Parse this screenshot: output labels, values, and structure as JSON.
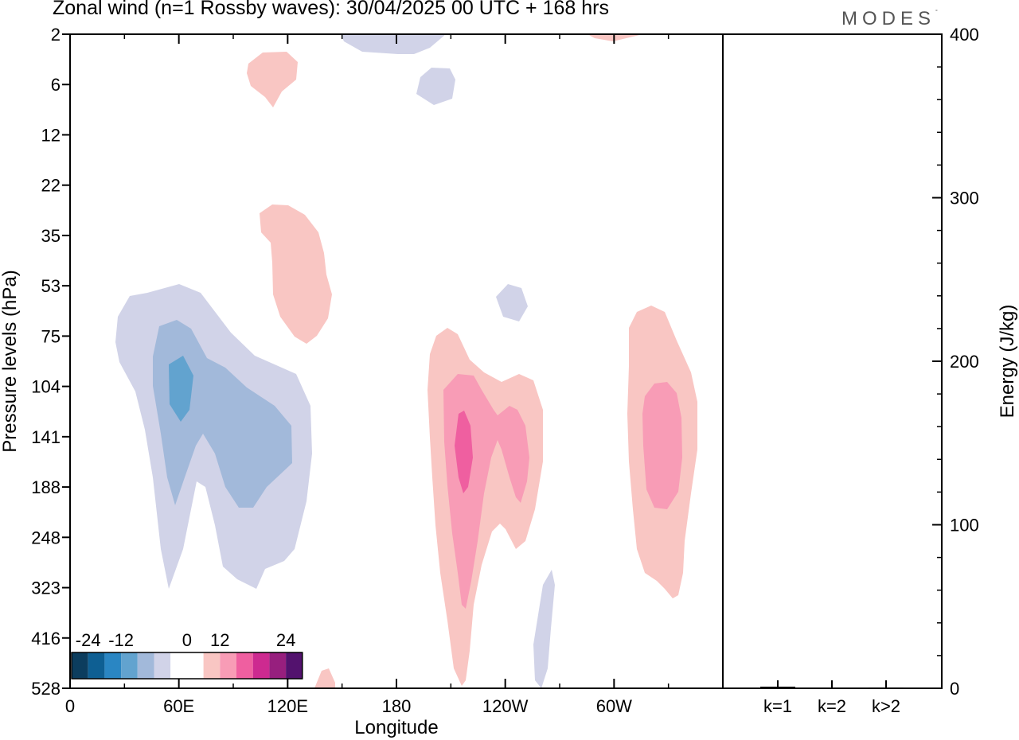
{
  "header": {
    "title": "Zonal wind (n=1 Rossby waves):  30/04/2025  00 UTC  + 168 hrs",
    "brand": "MODES",
    "brand_mark": "°"
  },
  "chart_data": [
    {
      "type": "heatmap",
      "title": "Zonal wind (n=1 Rossby waves):  30/04/2025  00 UTC  + 168 hrs",
      "xlabel": "Longitude",
      "ylabel": "Pressure levels (hPa)",
      "x_ticks": [
        "0",
        "60E",
        "120E",
        "180",
        "120W",
        "60W"
      ],
      "x_tick_values": [
        0,
        60,
        120,
        180,
        240,
        300
      ],
      "x_range": [
        0,
        360
      ],
      "y_ticks": [
        "2",
        "6",
        "12",
        "22",
        "35",
        "53",
        "75",
        "104",
        "141",
        "188",
        "248",
        "323",
        "416",
        "528"
      ],
      "y_scale": "ordinal pressure levels (top 2 hPa, bottom 528 hPa)",
      "colorbar": {
        "labels": [
          "-24",
          "-12",
          "0",
          "12",
          "24"
        ],
        "colors": [
          "#0c3d5e",
          "#0e5f93",
          "#2a86c3",
          "#62a3cf",
          "#a2b9da",
          "#d1d3e8",
          "#ffffff",
          "#ffffff",
          "#f9c6c3",
          "#f89cb6",
          "#ef5fa0",
          "#cd2a90",
          "#971f7e",
          "#53126e"
        ]
      },
      "features": [
        {
          "sign": "negative",
          "max_level": "-12",
          "center_lon": 60,
          "center_level": "104",
          "level_range": [
            "53",
            "323"
          ]
        },
        {
          "sign": "positive",
          "max_level": "12",
          "center_lon": 215,
          "center_level": "141",
          "level_range": [
            "75",
            "528"
          ]
        },
        {
          "sign": "positive",
          "max_level": "9",
          "center_lon": 325,
          "center_level": "141",
          "level_range": [
            "75",
            "323"
          ]
        },
        {
          "sign": "positive",
          "max_level": "3",
          "center_lon": 110,
          "center_level": "35",
          "level_range": [
            "22",
            "75"
          ]
        },
        {
          "sign": "positive",
          "max_level": "3",
          "center_lon": 112,
          "center_level": "6",
          "level_range": [
            "2",
            "12"
          ]
        },
        {
          "sign": "negative",
          "max_level": "-3",
          "center_lon": 200,
          "center_level": "6",
          "level_range": [
            "2",
            "12"
          ]
        },
        {
          "sign": "negative",
          "max_level": "-3",
          "center_lon": 243,
          "center_level": "53",
          "level_range": [
            "53",
            "75"
          ]
        },
        {
          "sign": "negative",
          "max_level": "-3",
          "center_lon": 262,
          "center_level": "416",
          "level_range": [
            "323",
            "528"
          ]
        }
      ]
    },
    {
      "type": "bar",
      "ylabel": "Energy (J/kg)",
      "categories": [
        "k=1",
        "k=2",
        "k>2"
      ],
      "values": [
        1,
        0,
        0.5
      ],
      "ylim": [
        0,
        400
      ],
      "y_ticks": [
        "0",
        "100",
        "200",
        "300",
        "400"
      ]
    }
  ]
}
